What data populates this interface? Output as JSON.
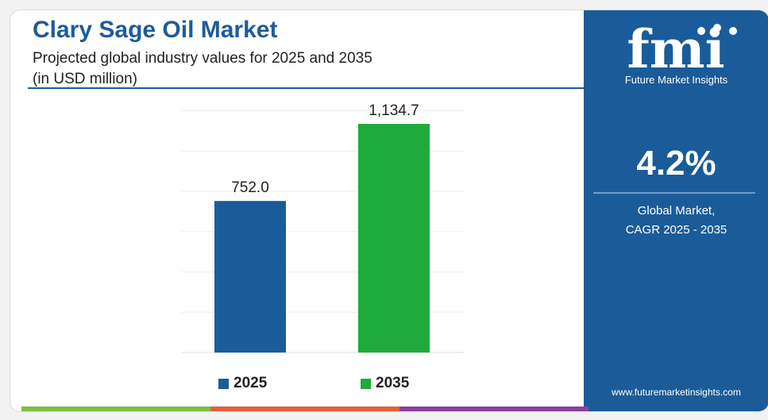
{
  "header": {
    "title": "Clary Sage Oil Market",
    "subtitle_line1": "Projected global industry values for 2025 and 2035",
    "subtitle_line2": "(in USD million)"
  },
  "chart_data": {
    "type": "bar",
    "title": "Clary Sage Oil Market",
    "subtitle": "Projected global industry values for 2025 and 2035 (in USD million)",
    "categories": [
      "2025",
      "2035"
    ],
    "values": [
      752.0,
      1134.7
    ],
    "value_labels": [
      "752.0",
      "1,134.7"
    ],
    "colors": [
      "#1a5c99",
      "#1fab3b"
    ],
    "xlabel": "",
    "ylabel": "",
    "ylim": [
      0,
      1200
    ],
    "grid": true,
    "legend": [
      "2025",
      "2035"
    ],
    "legend_position": "bottom"
  },
  "sidebar": {
    "logo_name": "fmi-logo",
    "logo_letters": "fmi",
    "logo_text": "Future Market Insights",
    "cagr_value": "4.2%",
    "cagr_label_line1": "Global Market,",
    "cagr_label_line2": "CAGR 2025 - 2035",
    "website": "www.futuremarketinsights.com",
    "background_color": "#1a5c99"
  },
  "accent_colors": {
    "title": "#1f5b9a",
    "bar_2025": "#1a5c99",
    "bar_2035": "#1fab3b",
    "bottom_bar": [
      "#7ac142",
      "#e2603e",
      "#8b3fa0",
      "#1a5c99"
    ]
  }
}
